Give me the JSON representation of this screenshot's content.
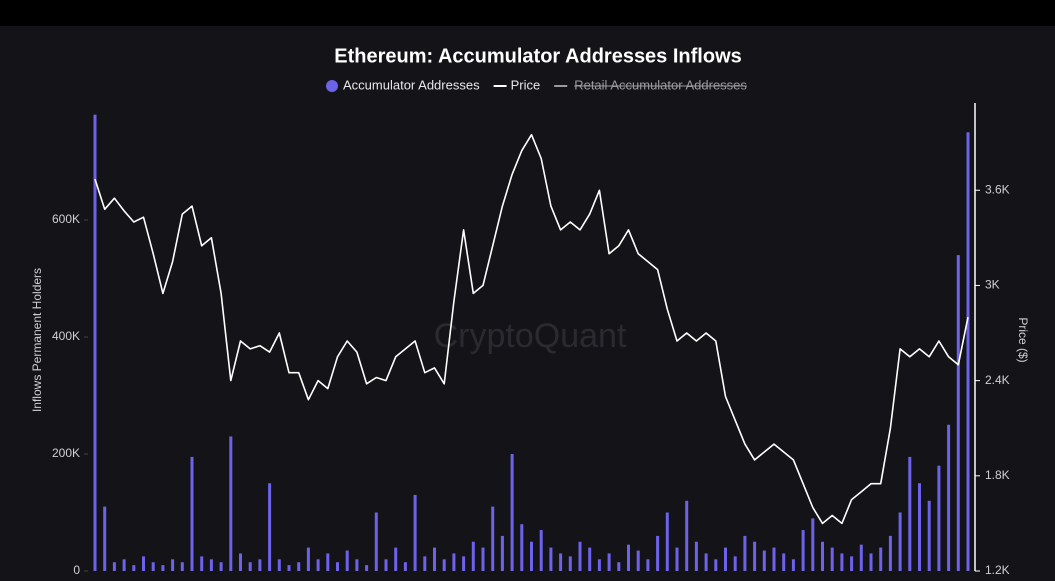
{
  "chart_data": {
    "type": "bar_line",
    "title": "Ethereum: Accumulator Addresses Inflows",
    "watermark": "CryptoQuant",
    "y_label": "Inflows Permanent Holders",
    "y2_label": "Price ($)",
    "ylim": [
      0,
      800000
    ],
    "yticks": [
      0,
      {
        "value": 200000,
        "label": "200K"
      },
      {
        "value": 400000,
        "label": "400K"
      },
      {
        "value": 600000,
        "label": "600K"
      }
    ],
    "y2lim": [
      1200,
      4150
    ],
    "y2ticks": [
      {
        "value": 1200,
        "label": "1.2K"
      },
      {
        "value": 1800,
        "label": "1.8K"
      },
      {
        "value": 2400,
        "label": "2.4K"
      },
      {
        "value": 3000,
        "label": "3K"
      },
      {
        "value": 3600,
        "label": "3.6K"
      }
    ],
    "series": [
      {
        "name": "Accumulator Addresses",
        "color": "#6d63ea",
        "kind": "bar",
        "values": [
          780000,
          110000,
          15000,
          20000,
          10000,
          25000,
          15000,
          10000,
          20000,
          15000,
          195000,
          25000,
          20000,
          15000,
          230000,
          30000,
          15000,
          20000,
          150000,
          20000,
          10000,
          15000,
          40000,
          20000,
          30000,
          15000,
          35000,
          20000,
          10000,
          100000,
          20000,
          40000,
          15000,
          130000,
          25000,
          40000,
          20000,
          30000,
          25000,
          50000,
          40000,
          110000,
          60000,
          200000,
          80000,
          50000,
          70000,
          40000,
          30000,
          25000,
          50000,
          40000,
          20000,
          30000,
          15000,
          45000,
          35000,
          20000,
          60000,
          100000,
          40000,
          120000,
          50000,
          30000,
          20000,
          40000,
          25000,
          60000,
          50000,
          35000,
          40000,
          30000,
          20000,
          70000,
          90000,
          50000,
          40000,
          30000,
          25000,
          45000,
          30000,
          40000,
          60000,
          100000,
          195000,
          150000,
          120000,
          180000,
          250000,
          540000,
          750000
        ]
      },
      {
        "name": "Price",
        "color": "#ffffff",
        "kind": "line",
        "axis": "y2",
        "values": [
          3670,
          3480,
          3550,
          3470,
          3400,
          3430,
          3200,
          2950,
          3150,
          3450,
          3500,
          3250,
          3300,
          2950,
          2400,
          2650,
          2600,
          2620,
          2580,
          2700,
          2450,
          2450,
          2280,
          2400,
          2350,
          2550,
          2650,
          2580,
          2380,
          2420,
          2400,
          2550,
          2600,
          2650,
          2450,
          2480,
          2380,
          2900,
          3350,
          2950,
          3000,
          3250,
          3500,
          3700,
          3850,
          3950,
          3800,
          3500,
          3350,
          3400,
          3350,
          3450,
          3600,
          3200,
          3250,
          3350,
          3200,
          3150,
          3100,
          2850,
          2650,
          2700,
          2650,
          2700,
          2650,
          2300,
          2150,
          2000,
          1900,
          1950,
          2000,
          1950,
          1900,
          1750,
          1600,
          1500,
          1550,
          1500,
          1650,
          1700,
          1750,
          1750,
          2100,
          2600,
          2550,
          2600,
          2550,
          2650,
          2550,
          2500,
          2800
        ]
      }
    ],
    "hidden_series": [
      {
        "name": "Retail Accumulator Addresses",
        "color": "#9a9aa0"
      }
    ]
  }
}
